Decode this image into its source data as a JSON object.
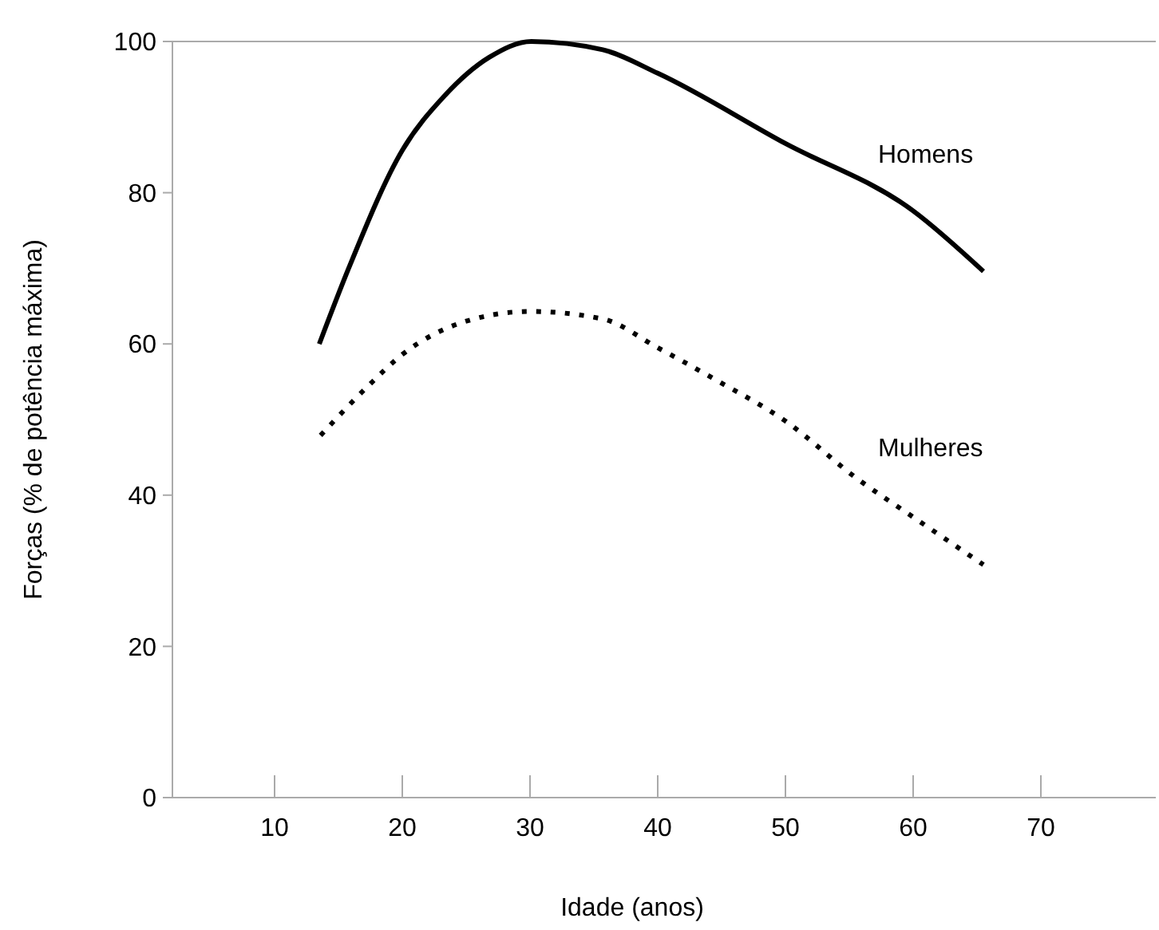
{
  "chart_data": {
    "type": "line",
    "xlabel": "Idade (anos)",
    "ylabel": "Forças (% de potência máxima)",
    "xlim": [
      2,
      79
    ],
    "ylim": [
      0,
      100
    ],
    "xticks": [
      10,
      20,
      30,
      40,
      50,
      60,
      70
    ],
    "yticks": [
      0,
      20,
      40,
      60,
      80,
      100
    ],
    "grid": false,
    "marker": "none",
    "series": [
      {
        "name": "Homens",
        "color": "#000000",
        "line_style": "solid",
        "x": [
          13.5,
          15.8,
          20,
          23.3,
          26.8,
          30.1,
          35.7,
          40,
          50,
          60,
          65.5
        ],
        "values": [
          60,
          70,
          85.6,
          92.8,
          97.9,
          100,
          98.9,
          95.8,
          86.5,
          77.6,
          69.6
        ]
      },
      {
        "name": "Mulheres",
        "color": "#000000",
        "line_style": "dotted",
        "x": [
          13.6,
          17.3,
          20,
          24.8,
          30,
          35.7,
          40,
          44.7,
          50,
          55.6,
          60,
          65.5
        ],
        "values": [
          47.9,
          54.4,
          58.6,
          62.9,
          64.3,
          63.3,
          59.5,
          55.1,
          49.8,
          42.2,
          37.1,
          30.8
        ]
      }
    ]
  }
}
